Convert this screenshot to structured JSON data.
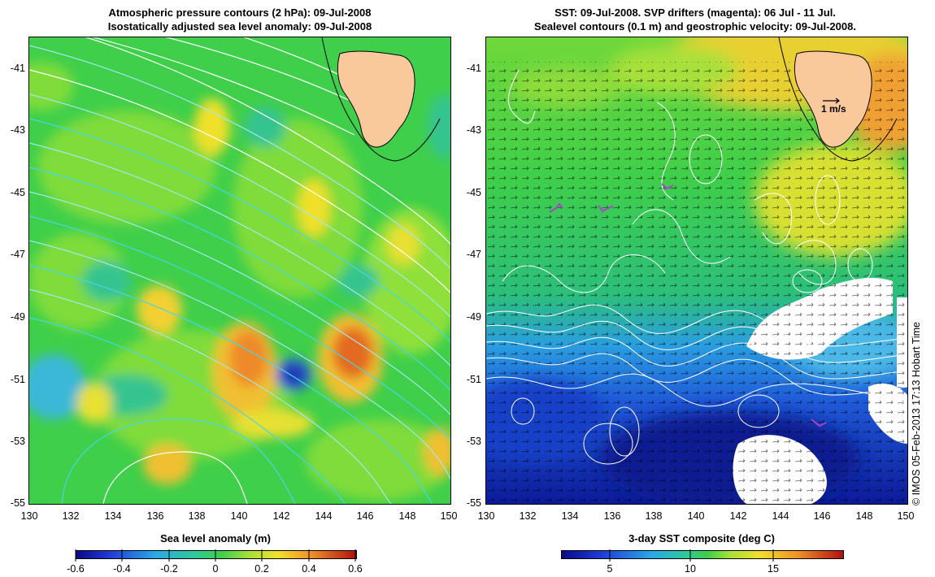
{
  "left_panel": {
    "title_line1": "Atmospheric pressure contours (2 hPa): 09-Jul-2008",
    "title_line2": "Isostatically adjusted sea level anomaly: 09-Jul-2008",
    "colorbar": {
      "label": "Sea level anomaly (m)",
      "ticks": [
        "-0.6",
        "-0.4",
        "-0.2",
        "0",
        "0.2",
        "0.4",
        "0.6"
      ]
    }
  },
  "right_panel": {
    "title_line1": "SST: 09-Jul-2008. SVP drifters (magenta): 06 Jul - 11 Jul.",
    "title_line2": "Sealevel contours (0.1 m) and geostrophic velocity: 09-Jul-2008.",
    "velocity_scale_label": "1 m/s",
    "colorbar": {
      "label": "3-day SST composite (deg C)",
      "ticks": [
        "5",
        "10",
        "15"
      ]
    }
  },
  "axes": {
    "lat_ticks": [
      "-41",
      "-43",
      "-45",
      "-47",
      "-49",
      "-51",
      "-53",
      "-55"
    ],
    "lon_ticks": [
      "130",
      "132",
      "134",
      "136",
      "138",
      "140",
      "142",
      "144",
      "146",
      "148",
      "150"
    ]
  },
  "copyright": "© IMOS 05-Feb-2013 17:13 Hobart Time",
  "colors": {
    "land": "#f9c89b",
    "white_contour": "#ffffff",
    "cyan_contour": "#45d6e8",
    "drifter": "#b040d0"
  }
}
